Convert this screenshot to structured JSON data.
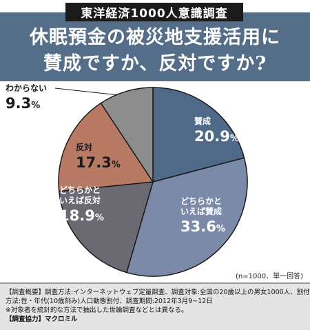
{
  "badge": "東洋経済1000人意識調査",
  "title_lines": [
    "休眠預金の被災地支援活用に",
    "賛成ですか、反対ですか?"
  ],
  "sample_note": "(n=1000、単一回答)",
  "footer": {
    "line1": "【調査概要】調査方法:インターネットウェブ定量調査、調査対象:全国の20歳以上の男女1000人、割付",
    "line2": "方法:性・年代(10歳刻み)人口動態割付、調査期間:2012年3月9~12日",
    "line3": "※対象者を統計的な方法で抽出した世論調査などとは異なる。",
    "line4_label": "【調査協力】",
    "line4_value": "マクロミル"
  },
  "chart_data": {
    "type": "pie",
    "unit": "%",
    "slices": [
      {
        "label_lines": [
          "賛成"
        ],
        "value": 20.9,
        "color": "#4f6a89",
        "label_color": "#ffffff"
      },
      {
        "label_lines": [
          "どちらかと",
          "いえば賛成"
        ],
        "value": 33.6,
        "color": "#7c8aaa",
        "label_color": "#ffffff"
      },
      {
        "label_lines": [
          "どちらかと",
          "いえば反対"
        ],
        "value": 18.9,
        "color": "#6b6a73",
        "label_color": "#ffffff"
      },
      {
        "label_lines": [
          "反対"
        ],
        "value": 17.3,
        "color": "#b87a65",
        "label_color": "#1a1a1a"
      },
      {
        "label_lines": [
          "わからない"
        ],
        "value": 9.3,
        "color": "#8d8d8d",
        "label_color": "#1a1a1a"
      }
    ]
  }
}
